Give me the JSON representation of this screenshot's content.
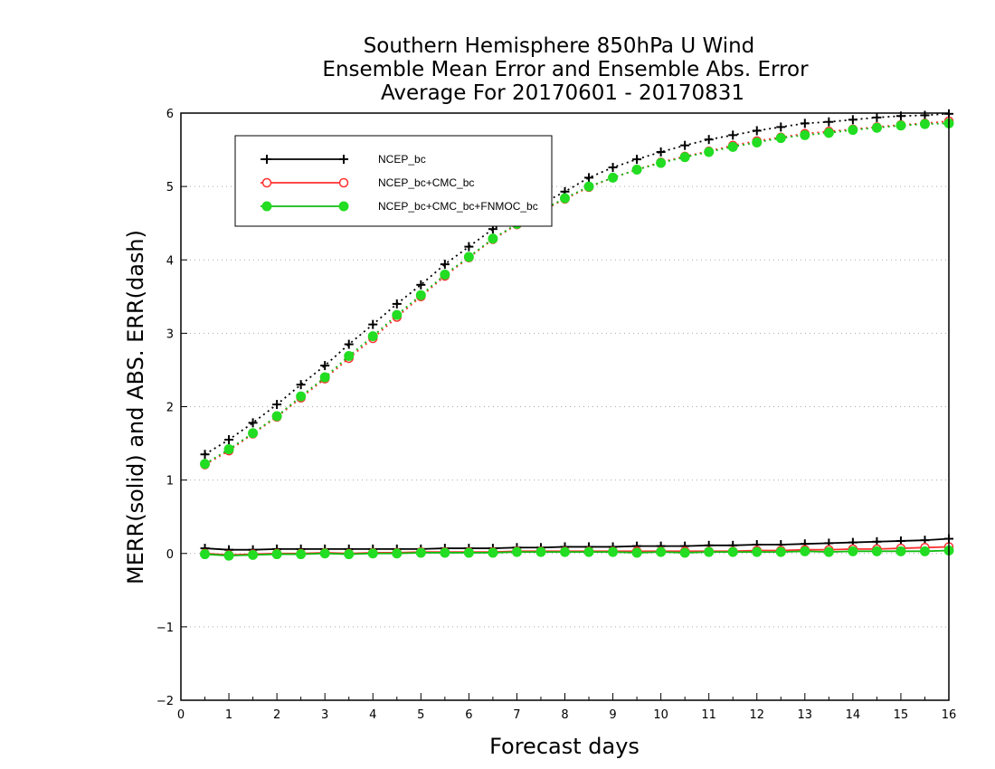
{
  "chart_data": {
    "type": "line",
    "title": [
      "Southern Hemisphere 850hPa U Wind",
      "Ensemble Mean Error and Ensemble Abs. Error",
      "Average For 20170601 - 20170831"
    ],
    "xlabel": "Forecast days",
    "ylabel": "MERR(solid) and ABS. ERR(dash)",
    "xlim": [
      0,
      16
    ],
    "ylim": [
      -2,
      6
    ],
    "xticks": [
      "0",
      "1",
      "2",
      "3",
      "4",
      "5",
      "6",
      "7",
      "8",
      "9",
      "10",
      "11",
      "12",
      "13",
      "14",
      "15",
      "16"
    ],
    "yticks": [
      "−2",
      "−1",
      "0",
      "1",
      "2",
      "3",
      "4",
      "5",
      "6"
    ],
    "grid": "horizontal dotted",
    "legend_position": "top-left",
    "x": [
      0.5,
      1,
      1.5,
      2,
      2.5,
      3,
      3.5,
      4,
      4.5,
      5,
      5.5,
      6,
      6.5,
      7,
      7.5,
      8,
      8.5,
      9,
      9.5,
      10,
      10.5,
      11,
      11.5,
      12,
      12.5,
      13,
      13.5,
      14,
      14.5,
      15,
      15.5,
      16
    ],
    "series": [
      {
        "name": "NCEP_bc",
        "color": "#000000",
        "marker": "plus",
        "merr": [
          0.07,
          0.05,
          0.05,
          0.06,
          0.06,
          0.06,
          0.06,
          0.06,
          0.06,
          0.06,
          0.07,
          0.07,
          0.07,
          0.08,
          0.08,
          0.09,
          0.09,
          0.09,
          0.1,
          0.1,
          0.1,
          0.11,
          0.11,
          0.12,
          0.12,
          0.13,
          0.14,
          0.15,
          0.16,
          0.17,
          0.18,
          0.2
        ],
        "abs_err": [
          1.35,
          1.55,
          1.78,
          2.03,
          2.3,
          2.56,
          2.85,
          3.12,
          3.4,
          3.66,
          3.94,
          4.18,
          4.42,
          4.6,
          4.76,
          4.93,
          5.12,
          5.26,
          5.37,
          5.47,
          5.56,
          5.64,
          5.7,
          5.76,
          5.81,
          5.86,
          5.88,
          5.91,
          5.94,
          5.96,
          5.97,
          5.99
        ]
      },
      {
        "name": "NCEP_bc+CMC_bc",
        "color": "#ff3030",
        "marker": "open-circle",
        "merr": [
          0.0,
          -0.02,
          -0.01,
          0.0,
          0.0,
          0.01,
          0.0,
          0.01,
          0.01,
          0.02,
          0.02,
          0.02,
          0.02,
          0.03,
          0.03,
          0.03,
          0.03,
          0.03,
          0.03,
          0.03,
          0.03,
          0.03,
          0.03,
          0.04,
          0.04,
          0.05,
          0.05,
          0.06,
          0.06,
          0.07,
          0.08,
          0.09
        ],
        "abs_err": [
          1.21,
          1.4,
          1.63,
          1.86,
          2.12,
          2.38,
          2.66,
          2.93,
          3.22,
          3.5,
          3.78,
          4.03,
          4.28,
          4.48,
          4.66,
          4.83,
          4.99,
          5.12,
          5.23,
          5.33,
          5.41,
          5.48,
          5.56,
          5.62,
          5.67,
          5.72,
          5.75,
          5.78,
          5.81,
          5.84,
          5.86,
          5.89
        ]
      },
      {
        "name": "NCEP_bc+CMC_bc+FNMOC_bc",
        "color": "#22dd22",
        "marker": "filled-circle",
        "merr": [
          -0.01,
          -0.03,
          -0.02,
          -0.01,
          -0.01,
          0.0,
          -0.01,
          0.0,
          0.0,
          0.01,
          0.01,
          0.01,
          0.01,
          0.02,
          0.02,
          0.02,
          0.02,
          0.02,
          0.01,
          0.02,
          0.01,
          0.02,
          0.02,
          0.02,
          0.02,
          0.03,
          0.02,
          0.03,
          0.03,
          0.03,
          0.03,
          0.04
        ],
        "abs_err": [
          1.22,
          1.42,
          1.64,
          1.87,
          2.14,
          2.4,
          2.69,
          2.96,
          3.25,
          3.52,
          3.8,
          4.04,
          4.29,
          4.49,
          4.67,
          4.84,
          5.0,
          5.12,
          5.23,
          5.32,
          5.4,
          5.47,
          5.54,
          5.6,
          5.66,
          5.7,
          5.73,
          5.77,
          5.8,
          5.83,
          5.85,
          5.86
        ]
      }
    ]
  }
}
